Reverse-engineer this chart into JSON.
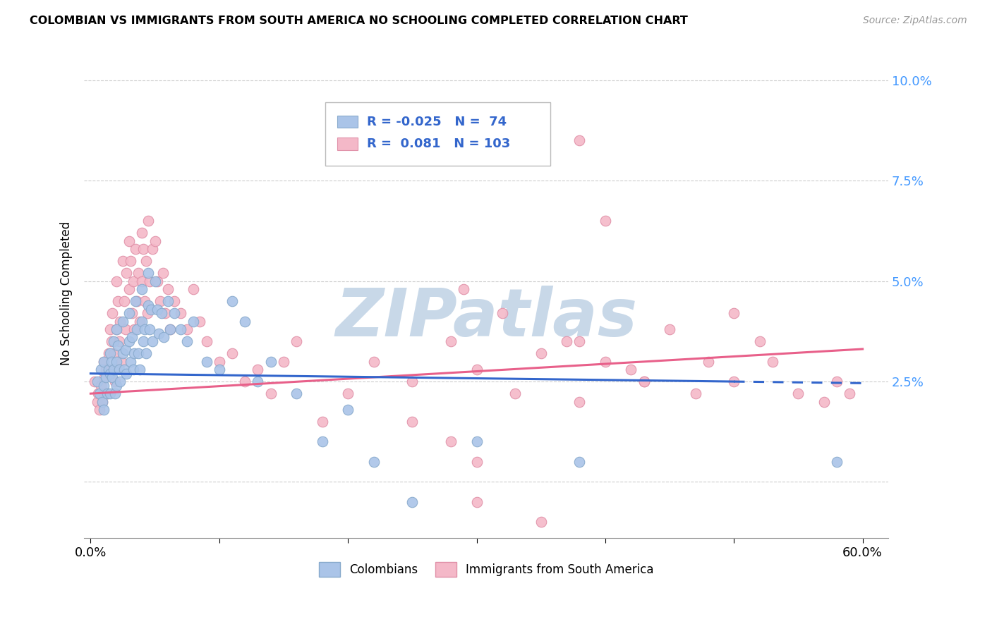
{
  "title": "COLOMBIAN VS IMMIGRANTS FROM SOUTH AMERICA NO SCHOOLING COMPLETED CORRELATION CHART",
  "source": "Source: ZipAtlas.com",
  "ylabel": "No Schooling Completed",
  "xlabel": "",
  "xlim": [
    -0.005,
    0.62
  ],
  "ylim": [
    -0.014,
    0.108
  ],
  "yticks": [
    0.0,
    0.025,
    0.05,
    0.075,
    0.1
  ],
  "ytick_labels": [
    "",
    "2.5%",
    "5.0%",
    "7.5%",
    "10.0%"
  ],
  "xticks": [
    0.0,
    0.1,
    0.2,
    0.3,
    0.4,
    0.5,
    0.6
  ],
  "xtick_labels": [
    "0.0%",
    "",
    "",
    "",
    "",
    "",
    "60.0%"
  ],
  "blue_color": "#aac4e8",
  "pink_color": "#f4b8c8",
  "blue_edge_color": "#88aacc",
  "pink_edge_color": "#e090a8",
  "blue_line_color": "#3366cc",
  "pink_line_color": "#e8608a",
  "R_blue": -0.025,
  "N_blue": 74,
  "R_pink": 0.081,
  "N_pink": 103,
  "watermark": "ZIPatlas",
  "watermark_color": "#c8d8e8",
  "blue_trend_x0": 0.0,
  "blue_trend_x_solid_end": 0.5,
  "blue_trend_x_dash_end": 0.6,
  "blue_trend_y0": 0.027,
  "blue_trend_slope": -0.004,
  "pink_trend_x0": 0.0,
  "pink_trend_x1": 0.6,
  "pink_trend_y0": 0.022,
  "pink_trend_slope": 0.0185,
  "blue_scatter_x": [
    0.005,
    0.007,
    0.008,
    0.009,
    0.01,
    0.01,
    0.01,
    0.012,
    0.013,
    0.014,
    0.015,
    0.015,
    0.015,
    0.016,
    0.017,
    0.018,
    0.018,
    0.019,
    0.02,
    0.02,
    0.02,
    0.021,
    0.022,
    0.023,
    0.025,
    0.025,
    0.026,
    0.027,
    0.028,
    0.03,
    0.03,
    0.031,
    0.032,
    0.033,
    0.034,
    0.035,
    0.036,
    0.037,
    0.038,
    0.04,
    0.04,
    0.041,
    0.042,
    0.043,
    0.045,
    0.045,
    0.046,
    0.047,
    0.048,
    0.05,
    0.052,
    0.053,
    0.055,
    0.057,
    0.06,
    0.062,
    0.065,
    0.07,
    0.075,
    0.08,
    0.09,
    0.1,
    0.11,
    0.12,
    0.13,
    0.14,
    0.16,
    0.18,
    0.2,
    0.22,
    0.25,
    0.3,
    0.38,
    0.58
  ],
  "blue_scatter_y": [
    0.025,
    0.022,
    0.028,
    0.02,
    0.03,
    0.024,
    0.018,
    0.026,
    0.022,
    0.028,
    0.032,
    0.027,
    0.022,
    0.03,
    0.026,
    0.035,
    0.028,
    0.022,
    0.038,
    0.03,
    0.024,
    0.034,
    0.028,
    0.025,
    0.04,
    0.032,
    0.028,
    0.033,
    0.027,
    0.042,
    0.035,
    0.03,
    0.036,
    0.028,
    0.032,
    0.045,
    0.038,
    0.032,
    0.028,
    0.048,
    0.04,
    0.035,
    0.038,
    0.032,
    0.052,
    0.044,
    0.038,
    0.043,
    0.035,
    0.05,
    0.043,
    0.037,
    0.042,
    0.036,
    0.045,
    0.038,
    0.042,
    0.038,
    0.035,
    0.04,
    0.03,
    0.028,
    0.045,
    0.04,
    0.025,
    0.03,
    0.022,
    0.01,
    0.018,
    0.005,
    -0.005,
    0.01,
    0.005,
    0.005
  ],
  "pink_scatter_x": [
    0.003,
    0.005,
    0.006,
    0.007,
    0.008,
    0.009,
    0.01,
    0.01,
    0.011,
    0.012,
    0.013,
    0.014,
    0.015,
    0.015,
    0.016,
    0.017,
    0.018,
    0.019,
    0.02,
    0.02,
    0.021,
    0.022,
    0.023,
    0.024,
    0.025,
    0.026,
    0.027,
    0.028,
    0.03,
    0.03,
    0.031,
    0.032,
    0.033,
    0.034,
    0.035,
    0.036,
    0.037,
    0.038,
    0.04,
    0.04,
    0.041,
    0.042,
    0.043,
    0.044,
    0.045,
    0.046,
    0.048,
    0.05,
    0.052,
    0.054,
    0.056,
    0.058,
    0.06,
    0.062,
    0.065,
    0.07,
    0.075,
    0.08,
    0.085,
    0.09,
    0.1,
    0.11,
    0.12,
    0.13,
    0.14,
    0.15,
    0.16,
    0.18,
    0.2,
    0.22,
    0.25,
    0.28,
    0.3,
    0.33,
    0.35,
    0.38,
    0.4,
    0.43,
    0.45,
    0.48,
    0.5,
    0.52,
    0.35,
    0.38,
    0.4,
    0.35,
    0.3,
    0.28,
    0.25,
    0.3,
    0.38,
    0.43,
    0.5,
    0.55,
    0.58,
    0.59,
    0.29,
    0.32,
    0.37,
    0.42,
    0.47,
    0.53,
    0.57
  ],
  "pink_scatter_y": [
    0.025,
    0.02,
    0.022,
    0.018,
    0.024,
    0.02,
    0.03,
    0.022,
    0.026,
    0.028,
    0.022,
    0.032,
    0.038,
    0.028,
    0.035,
    0.042,
    0.032,
    0.025,
    0.05,
    0.038,
    0.045,
    0.035,
    0.04,
    0.03,
    0.055,
    0.045,
    0.038,
    0.052,
    0.06,
    0.048,
    0.055,
    0.042,
    0.05,
    0.038,
    0.058,
    0.045,
    0.052,
    0.04,
    0.062,
    0.05,
    0.058,
    0.045,
    0.055,
    0.042,
    0.065,
    0.05,
    0.058,
    0.06,
    0.05,
    0.045,
    0.052,
    0.042,
    0.048,
    0.038,
    0.045,
    0.042,
    0.038,
    0.048,
    0.04,
    0.035,
    0.03,
    0.032,
    0.025,
    0.028,
    0.022,
    0.03,
    0.035,
    0.015,
    0.022,
    0.03,
    0.025,
    0.035,
    0.028,
    0.022,
    0.032,
    0.035,
    0.03,
    0.025,
    0.038,
    0.03,
    0.042,
    0.035,
    0.09,
    0.085,
    0.065,
    -0.01,
    -0.005,
    0.01,
    0.015,
    0.005,
    0.02,
    0.025,
    0.025,
    0.022,
    0.025,
    0.022,
    0.048,
    0.042,
    0.035,
    0.028,
    0.022,
    0.03,
    0.02
  ]
}
